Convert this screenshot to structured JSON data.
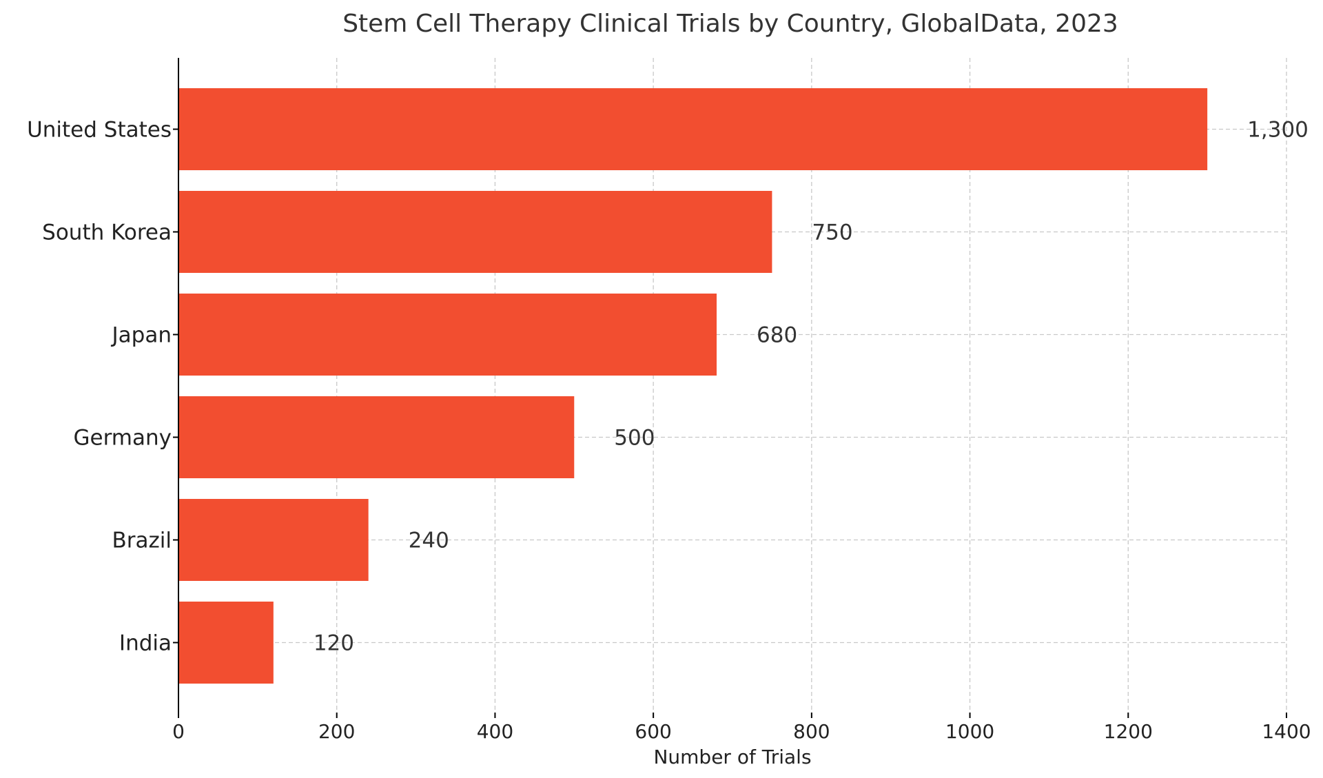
{
  "chart_data": {
    "type": "bar",
    "orientation": "horizontal",
    "title": "Stem Cell Therapy Clinical Trials by Country, GlobalData, 2023",
    "xlabel": "Number of Trials",
    "ylabel": "",
    "xlim": [
      0,
      1400
    ],
    "xticks": [
      0,
      200,
      400,
      600,
      800,
      1000,
      1200,
      1400
    ],
    "grid": true,
    "categories": [
      "United States",
      "South Korea",
      "Japan",
      "Germany",
      "Brazil",
      "India"
    ],
    "values": [
      1300,
      750,
      680,
      500,
      240,
      120
    ],
    "value_labels": [
      "1,300",
      "750",
      "680",
      "500",
      "240",
      "120"
    ],
    "bar_color": "#f24e30"
  }
}
